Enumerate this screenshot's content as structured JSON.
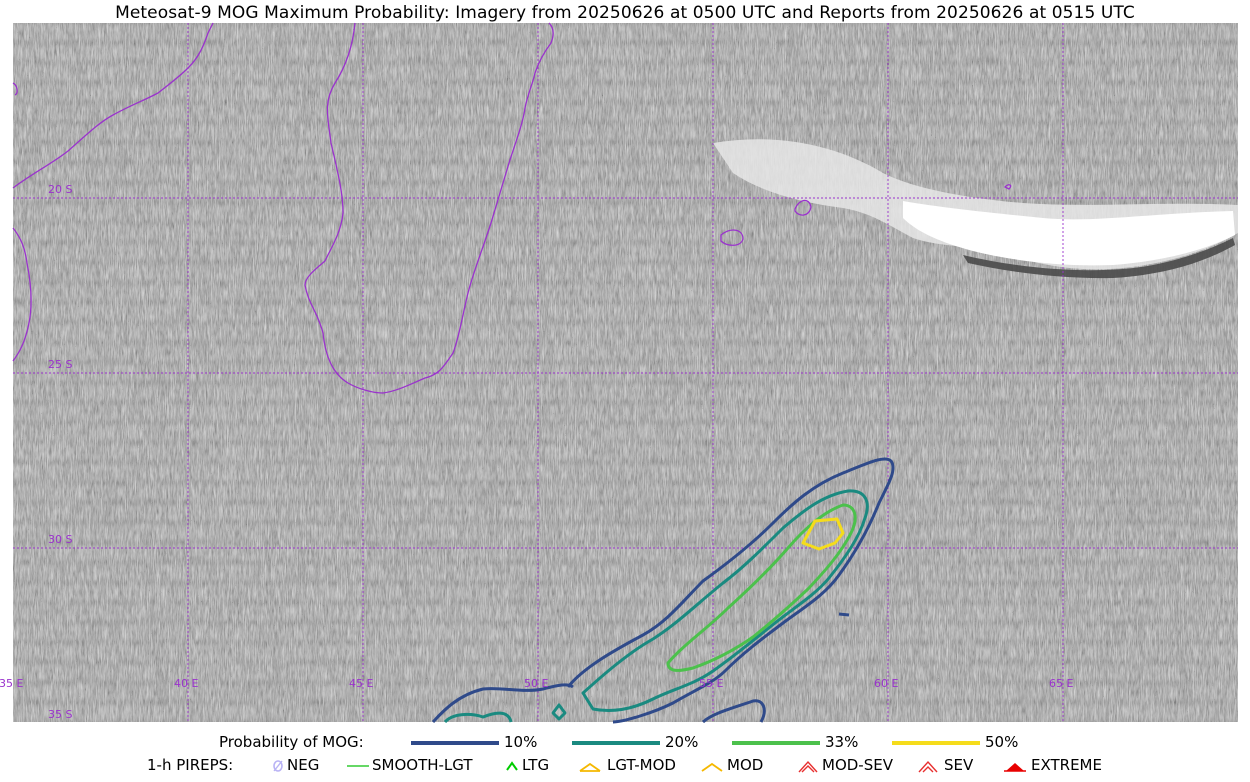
{
  "title": "Meteosat-9 MOG Maximum Probability: Imagery from 20250626 at 0500 UTC and Reports from 20250626 at 0515 UTC",
  "map": {
    "grid_color": "#9a32cd",
    "coast_color": "#9a32cd",
    "lat_labels": [
      "20 S",
      "25 S",
      "30 S",
      "35 S"
    ],
    "lon_labels": [
      "35 E",
      "40 E",
      "45 E",
      "50 E",
      "55 E",
      "60 E",
      "65 E"
    ],
    "contour_colors": {
      "p10": "#2f4a8a",
      "p20": "#1a8a80",
      "p33": "#4cc14c",
      "p50": "#f5dc1b"
    }
  },
  "legend": {
    "prob_label": "Probability of MOG:",
    "prob_items": [
      {
        "label": "10%",
        "color": "#2f4a8a"
      },
      {
        "label": "20%",
        "color": "#1a8a80"
      },
      {
        "label": "33%",
        "color": "#4cc14c"
      },
      {
        "label": "50%",
        "color": "#f5dc1b"
      }
    ],
    "pirep_label": "1-h PIREPS:",
    "pirep_items": [
      {
        "label": "NEG",
        "icon": "neg-icon",
        "color": "#b9b3f5"
      },
      {
        "label": "SMOOTH-LGT",
        "icon": "smooth-lgt-icon",
        "color": "#33cc33"
      },
      {
        "label": "LTG",
        "icon": "ltg-icon",
        "color": "#00cc00"
      },
      {
        "label": "LGT-MOD",
        "icon": "lgt-mod-icon",
        "color": "#f5b800"
      },
      {
        "label": "MOD",
        "icon": "mod-icon",
        "color": "#f5b800"
      },
      {
        "label": "MOD-SEV",
        "icon": "mod-sev-icon",
        "color": "#e83030"
      },
      {
        "label": "SEV",
        "icon": "sev-icon",
        "color": "#e83030"
      },
      {
        "label": "EXTREME",
        "icon": "extreme-icon",
        "color": "#e80000"
      }
    ]
  }
}
